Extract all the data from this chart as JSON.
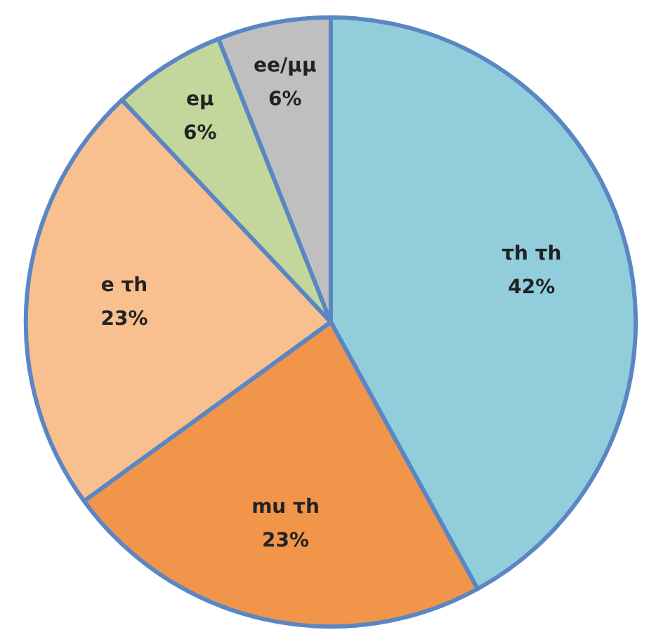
{
  "chart_data": {
    "type": "pie",
    "categories": [
      "τh τh",
      "mu τh",
      "e τh",
      "eμ",
      "ee/μμ"
    ],
    "values": [
      42,
      23,
      23,
      6,
      6
    ],
    "value_labels": [
      "42%",
      "23%",
      "23%",
      "6%",
      "6%"
    ],
    "colors": [
      "#92cddc",
      "#f0954a",
      "#f8bf8f",
      "#c3d69b",
      "#bfbfbf"
    ],
    "legend": false
  }
}
